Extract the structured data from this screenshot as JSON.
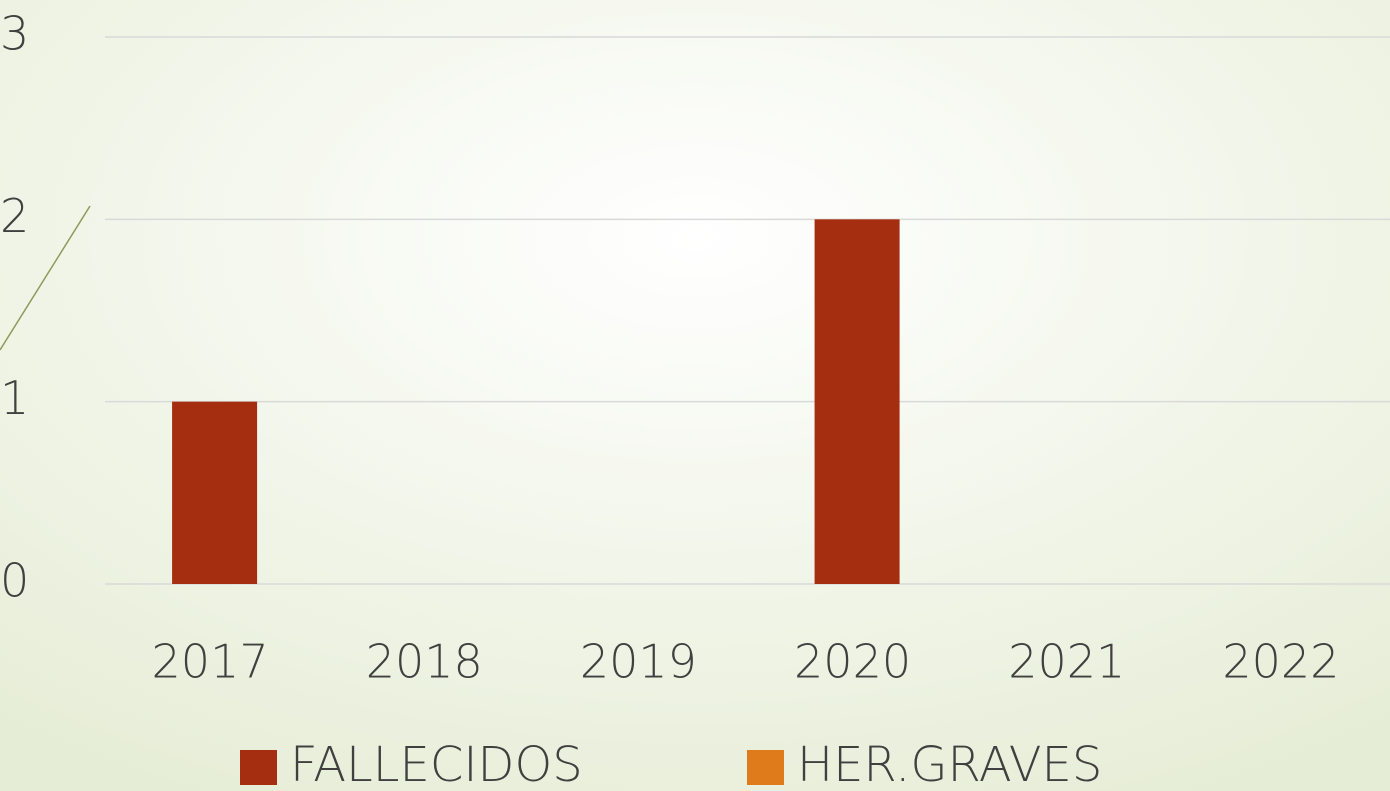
{
  "chart_data": {
    "type": "bar",
    "categories": [
      "2017",
      "2018",
      "2019",
      "2020",
      "2021",
      "2022"
    ],
    "series": [
      {
        "name": "FALLECIDOS",
        "color": "#a52e10",
        "values": [
          1,
          0,
          0,
          2,
          0,
          0
        ]
      },
      {
        "name": "HER.GRAVES",
        "color": "#e07b1c",
        "values": [
          0,
          0,
          0,
          0,
          0,
          0
        ]
      }
    ],
    "ylim": [
      0,
      3
    ],
    "yticks": [
      0,
      1,
      2,
      3
    ],
    "grid": true,
    "legend": "bottom"
  }
}
